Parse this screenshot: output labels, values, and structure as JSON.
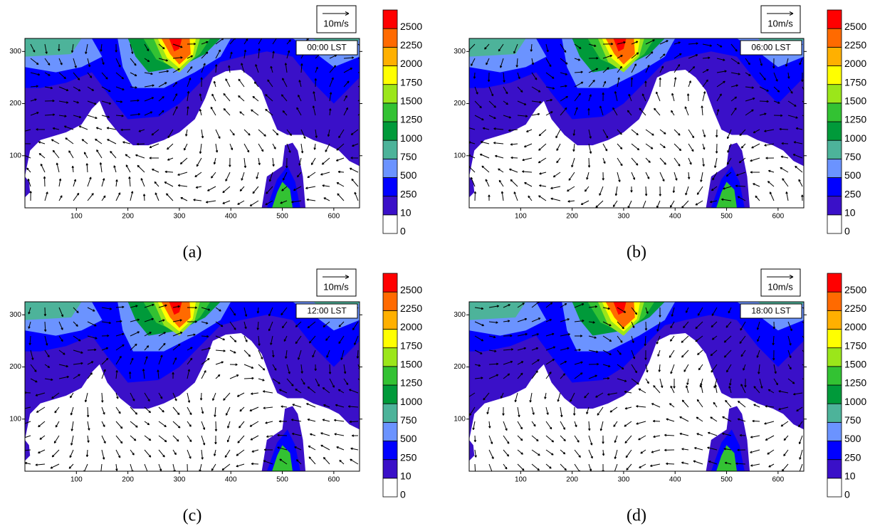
{
  "axes": {
    "xlim": [
      0,
      650
    ],
    "ylim": [
      0,
      325
    ],
    "xticks": [
      100,
      200,
      300,
      400,
      500,
      600
    ],
    "yticks": [
      100,
      200,
      300
    ]
  },
  "colorbar": {
    "levels": [
      0,
      10,
      250,
      500,
      750,
      1000,
      1250,
      1500,
      1750,
      2000,
      2250,
      2500
    ],
    "colors": [
      "#ffffff",
      "#3a10c8",
      "#0000ff",
      "#6b93ff",
      "#4db39a",
      "#009a3a",
      "#33c233",
      "#9be61a",
      "#ffff00",
      "#ffb000",
      "#ff6a00",
      "#ff0000"
    ]
  },
  "vector_scale_label": "10m/s",
  "panels": [
    {
      "caption": "(a)",
      "time": "00:00 LST"
    },
    {
      "caption": "(b)",
      "time": "06:00 LST"
    },
    {
      "caption": "(c)",
      "time": "12:00 LST"
    },
    {
      "caption": "(d)",
      "time": "18:00 LST"
    }
  ]
}
